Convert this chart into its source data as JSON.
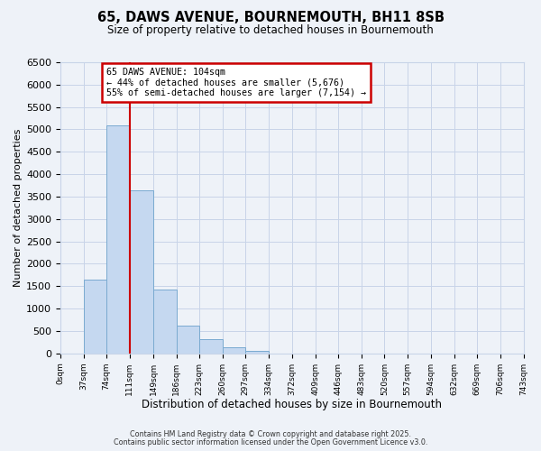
{
  "title": "65, DAWS AVENUE, BOURNEMOUTH, BH11 8SB",
  "subtitle": "Size of property relative to detached houses in Bournemouth",
  "xlabel": "Distribution of detached houses by size in Bournemouth",
  "ylabel": "Number of detached properties",
  "bin_edges": [
    0,
    37,
    74,
    111,
    149,
    186,
    223,
    260,
    297,
    334,
    372,
    409,
    446,
    483,
    520,
    557,
    594,
    632,
    669,
    706,
    743
  ],
  "bin_labels": [
    "0sqm",
    "37sqm",
    "74sqm",
    "111sqm",
    "149sqm",
    "186sqm",
    "223sqm",
    "260sqm",
    "297sqm",
    "334sqm",
    "372sqm",
    "409sqm",
    "446sqm",
    "483sqm",
    "520sqm",
    "557sqm",
    "594sqm",
    "632sqm",
    "669sqm",
    "706sqm",
    "743sqm"
  ],
  "counts": [
    0,
    1650,
    5100,
    3650,
    1430,
    620,
    310,
    140,
    50,
    0,
    0,
    0,
    0,
    0,
    0,
    0,
    0,
    0,
    0,
    0
  ],
  "bar_color": "#c5d8f0",
  "bar_edge_color": "#7aaad0",
  "vline_x": 111,
  "vline_color": "#cc0000",
  "annotation_title": "65 DAWS AVENUE: 104sqm",
  "annotation_line1": "← 44% of detached houses are smaller (5,676)",
  "annotation_line2": "55% of semi-detached houses are larger (7,154) →",
  "annotation_box_color": "#cc0000",
  "ylim": [
    0,
    6500
  ],
  "yticks": [
    0,
    500,
    1000,
    1500,
    2000,
    2500,
    3000,
    3500,
    4000,
    4500,
    5000,
    5500,
    6000,
    6500
  ],
  "grid_color": "#c8d4e8",
  "background_color": "#eef2f8",
  "footer1": "Contains HM Land Registry data © Crown copyright and database right 2025.",
  "footer2": "Contains public sector information licensed under the Open Government Licence v3.0."
}
